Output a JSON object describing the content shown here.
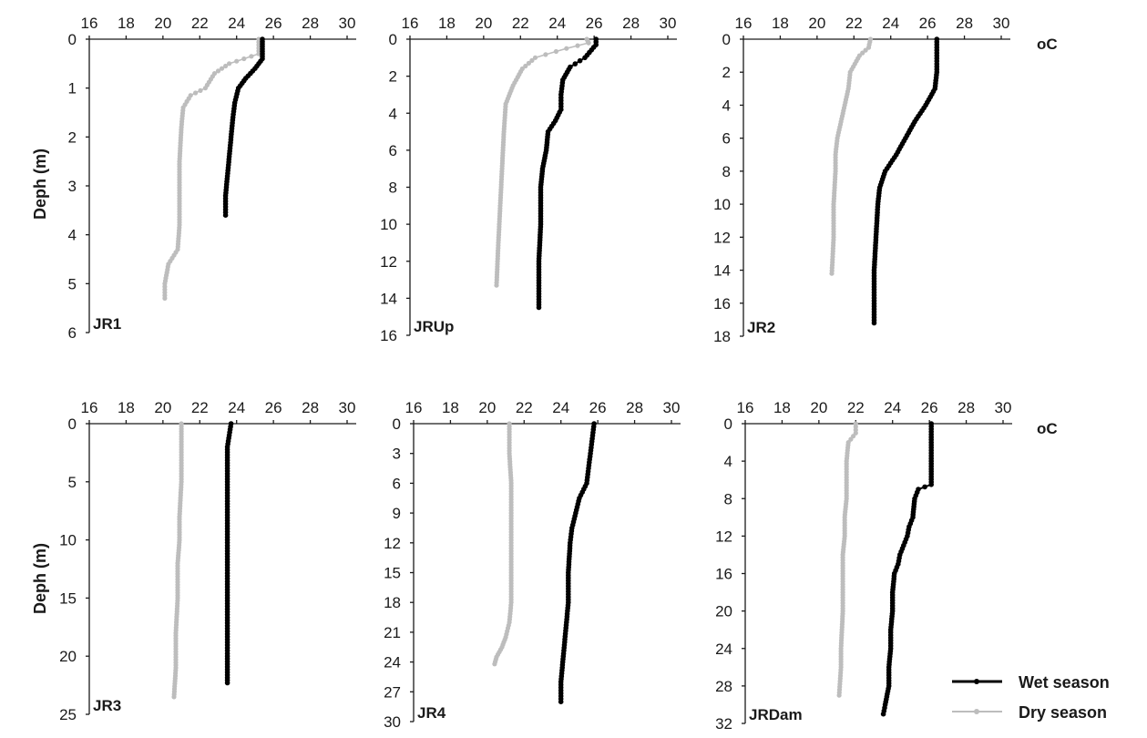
{
  "figure": {
    "unit_label": "oC",
    "ylabel": "Deph (m)",
    "legend": {
      "wet": "Wet season",
      "dry": "Dry season"
    },
    "colors": {
      "wet": "#000000",
      "dry": "#bdbdbd"
    }
  },
  "chart_data": [
    {
      "type": "line",
      "station": "JR1",
      "x_ticks": [
        "16",
        "18",
        "20",
        "22",
        "24",
        "26",
        "28",
        "30"
      ],
      "y_ticks": [
        "0",
        "1",
        "2",
        "3",
        "4",
        "5",
        "6"
      ],
      "xlim": [
        16,
        30
      ],
      "ylim": [
        0,
        6
      ],
      "y_inverted": true,
      "xlabel_position": "top",
      "series": [
        {
          "name": "Wet season",
          "points": [
            [
              25.4,
              0
            ],
            [
              25.4,
              0.2
            ],
            [
              25.4,
              0.4
            ],
            [
              25,
              0.6
            ],
            [
              24.5,
              0.8
            ],
            [
              24.1,
              1
            ],
            [
              23.9,
              1.3
            ],
            [
              23.8,
              1.6
            ],
            [
              23.7,
              2
            ],
            [
              23.6,
              2.4
            ],
            [
              23.5,
              2.8
            ],
            [
              23.4,
              3.2
            ],
            [
              23.4,
              3.6
            ]
          ]
        },
        {
          "name": "Dry season",
          "points": [
            [
              25.2,
              0
            ],
            [
              25.2,
              0.3
            ],
            [
              23.6,
              0.5
            ],
            [
              22.8,
              0.7
            ],
            [
              22.3,
              1
            ],
            [
              21.5,
              1.15
            ],
            [
              21.1,
              1.4
            ],
            [
              21,
              1.8
            ],
            [
              20.9,
              2.5
            ],
            [
              20.9,
              3.2
            ],
            [
              20.9,
              3.8
            ],
            [
              20.8,
              4.3
            ],
            [
              20.3,
              4.6
            ],
            [
              20.1,
              5
            ],
            [
              20.1,
              5.3
            ]
          ]
        }
      ]
    },
    {
      "type": "line",
      "station": "JRUp",
      "x_ticks": [
        "16",
        "18",
        "20",
        "22",
        "24",
        "26",
        "28",
        "30"
      ],
      "y_ticks": [
        "0",
        "2",
        "4",
        "6",
        "8",
        "10",
        "12",
        "14",
        "16"
      ],
      "xlim": [
        16,
        30
      ],
      "ylim": [
        0,
        16
      ],
      "y_inverted": true,
      "xlabel_position": "top",
      "series": [
        {
          "name": "Wet season",
          "points": [
            [
              26.1,
              0
            ],
            [
              26.1,
              0.3
            ],
            [
              25.5,
              1
            ],
            [
              24.7,
              1.5
            ],
            [
              24.3,
              2.2
            ],
            [
              24.2,
              3
            ],
            [
              24.2,
              3.8
            ],
            [
              23.9,
              4.4
            ],
            [
              23.5,
              5
            ],
            [
              23.4,
              6
            ],
            [
              23.2,
              7
            ],
            [
              23.1,
              8
            ],
            [
              23.1,
              10
            ],
            [
              23,
              12
            ],
            [
              23,
              14.5
            ]
          ]
        },
        {
          "name": "Dry season",
          "points": [
            [
              25.6,
              0
            ],
            [
              25.7,
              0.2
            ],
            [
              24.5,
              0.5
            ],
            [
              22.8,
              1
            ],
            [
              22.1,
              1.6
            ],
            [
              21.6,
              2.5
            ],
            [
              21.2,
              3.5
            ],
            [
              21.1,
              5
            ],
            [
              21,
              7
            ],
            [
              20.9,
              9
            ],
            [
              20.8,
              11
            ],
            [
              20.7,
              13.3
            ]
          ]
        }
      ]
    },
    {
      "type": "line",
      "station": "JR2",
      "x_ticks": [
        "16",
        "18",
        "20",
        "22",
        "24",
        "26",
        "28",
        "30"
      ],
      "y_ticks": [
        "0",
        "2",
        "4",
        "6",
        "8",
        "10",
        "12",
        "14",
        "16",
        "18"
      ],
      "xlim": [
        16,
        30
      ],
      "ylim": [
        0,
        18
      ],
      "y_inverted": true,
      "xlabel_position": "top",
      "series": [
        {
          "name": "Wet season",
          "points": [
            [
              26.5,
              0
            ],
            [
              26.5,
              1
            ],
            [
              26.5,
              2
            ],
            [
              26.4,
              3
            ],
            [
              25.9,
              4
            ],
            [
              25.3,
              5
            ],
            [
              24.8,
              6
            ],
            [
              24.3,
              7
            ],
            [
              23.7,
              8
            ],
            [
              23.4,
              9
            ],
            [
              23.3,
              10
            ],
            [
              23.2,
              12
            ],
            [
              23.1,
              14
            ],
            [
              23.1,
              17.2
            ]
          ]
        },
        {
          "name": "Dry season",
          "points": [
            [
              22.9,
              0
            ],
            [
              22.8,
              0.5
            ],
            [
              22.3,
              1
            ],
            [
              21.8,
              2
            ],
            [
              21.7,
              3
            ],
            [
              21.5,
              4
            ],
            [
              21.3,
              5
            ],
            [
              21.1,
              6
            ],
            [
              21,
              7
            ],
            [
              21,
              8
            ],
            [
              20.9,
              10
            ],
            [
              20.9,
              12
            ],
            [
              20.8,
              14.2
            ]
          ]
        }
      ]
    },
    {
      "type": "line",
      "station": "JR3",
      "x_ticks": [
        "16",
        "18",
        "20",
        "22",
        "24",
        "26",
        "28",
        "30"
      ],
      "y_ticks": [
        "0",
        "5",
        "10",
        "15",
        "20",
        "25"
      ],
      "xlim": [
        16,
        30
      ],
      "ylim": [
        0,
        25
      ],
      "y_inverted": true,
      "xlabel_position": "top",
      "series": [
        {
          "name": "Wet season",
          "points": [
            [
              23.7,
              0
            ],
            [
              23.6,
              1
            ],
            [
              23.5,
              2
            ],
            [
              23.5,
              5
            ],
            [
              23.5,
              10
            ],
            [
              23.5,
              15
            ],
            [
              23.5,
              20
            ],
            [
              23.5,
              22.3
            ]
          ]
        },
        {
          "name": "Dry season",
          "points": [
            [
              21,
              0
            ],
            [
              21,
              2
            ],
            [
              21,
              5
            ],
            [
              20.9,
              8
            ],
            [
              20.9,
              10
            ],
            [
              20.8,
              12
            ],
            [
              20.8,
              15
            ],
            [
              20.7,
              18
            ],
            [
              20.7,
              21
            ],
            [
              20.6,
              23.5
            ]
          ]
        }
      ]
    },
    {
      "type": "line",
      "station": "JR4",
      "x_ticks": [
        "16",
        "18",
        "20",
        "22",
        "24",
        "26",
        "28",
        "30"
      ],
      "y_ticks": [
        "0",
        "3",
        "6",
        "9",
        "12",
        "15",
        "18",
        "21",
        "24",
        "27",
        "30"
      ],
      "xlim": [
        16,
        30
      ],
      "ylim": [
        0,
        30
      ],
      "y_inverted": true,
      "xlabel_position": "top",
      "series": [
        {
          "name": "Wet season",
          "points": [
            [
              25.8,
              0
            ],
            [
              25.7,
              1.5
            ],
            [
              25.6,
              3
            ],
            [
              25.5,
              4.5
            ],
            [
              25.4,
              6
            ],
            [
              25,
              7.5
            ],
            [
              24.8,
              9
            ],
            [
              24.6,
              10.5
            ],
            [
              24.5,
              12
            ],
            [
              24.4,
              15
            ],
            [
              24.4,
              18
            ],
            [
              24.3,
              20
            ],
            [
              24.2,
              22
            ],
            [
              24.1,
              24
            ],
            [
              24,
              26
            ],
            [
              24,
              28
            ]
          ]
        },
        {
          "name": "Dry season",
          "points": [
            [
              21.2,
              0
            ],
            [
              21.2,
              3
            ],
            [
              21.3,
              6
            ],
            [
              21.3,
              9
            ],
            [
              21.3,
              12
            ],
            [
              21.3,
              15
            ],
            [
              21.3,
              18
            ],
            [
              21.2,
              20
            ],
            [
              21,
              21.5
            ],
            [
              20.8,
              22.5
            ],
            [
              20.5,
              23.5
            ],
            [
              20.4,
              24.2
            ]
          ]
        }
      ]
    },
    {
      "type": "line",
      "station": "JRDam",
      "x_ticks": [
        "16",
        "18",
        "20",
        "22",
        "24",
        "26",
        "28",
        "30"
      ],
      "y_ticks": [
        "0",
        "4",
        "8",
        "12",
        "16",
        "20",
        "24",
        "28",
        "32"
      ],
      "xlim": [
        16,
        30
      ],
      "ylim": [
        0,
        32
      ],
      "y_inverted": true,
      "xlabel_position": "top",
      "series": [
        {
          "name": "Wet season",
          "points": [
            [
              26.1,
              0
            ],
            [
              26.1,
              2
            ],
            [
              26.1,
              4
            ],
            [
              26.1,
              6.5
            ],
            [
              25.4,
              7
            ],
            [
              25.2,
              8
            ],
            [
              25.1,
              10
            ],
            [
              24.9,
              11
            ],
            [
              24.8,
              12
            ],
            [
              24.6,
              13
            ],
            [
              24.4,
              14
            ],
            [
              24.3,
              15
            ],
            [
              24.1,
              16
            ],
            [
              24,
              18
            ],
            [
              24,
              20
            ],
            [
              23.9,
              22
            ],
            [
              23.9,
              24
            ],
            [
              23.8,
              26
            ],
            [
              23.8,
              28
            ],
            [
              23.6,
              30
            ],
            [
              23.5,
              31
            ]
          ]
        },
        {
          "name": "Dry season",
          "points": [
            [
              22,
              0
            ],
            [
              22,
              1
            ],
            [
              21.6,
              2
            ],
            [
              21.5,
              4
            ],
            [
              21.5,
              6
            ],
            [
              21.5,
              8
            ],
            [
              21.4,
              10
            ],
            [
              21.4,
              12
            ],
            [
              21.3,
              14
            ],
            [
              21.3,
              16
            ],
            [
              21.3,
              20
            ],
            [
              21.2,
              24
            ],
            [
              21.2,
              26
            ],
            [
              21.1,
              29
            ]
          ]
        }
      ]
    }
  ]
}
